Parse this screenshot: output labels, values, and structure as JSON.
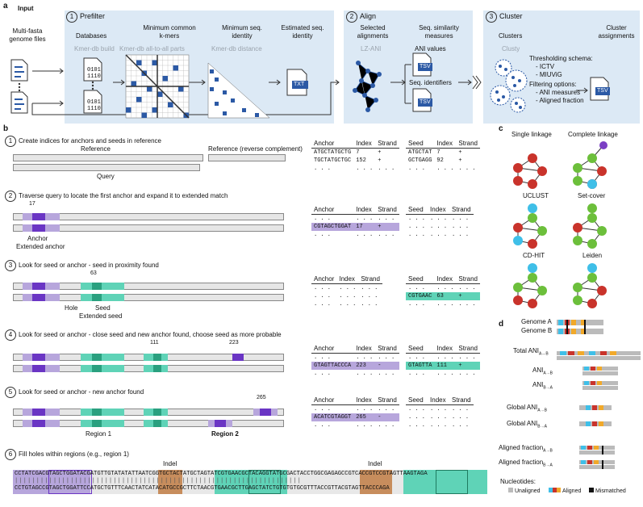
{
  "panels": {
    "a": "a",
    "b": "b",
    "c": "c",
    "d": "d"
  },
  "a": {
    "input": "Input",
    "input_desc": "Multi-fasta genome files",
    "prefilter": "Prefilter",
    "prefilter_num": "1",
    "databases": "Databases",
    "min_kmers": "Minimum common k-mers",
    "min_seq_id": "Minimum seq. identity",
    "est_seq_id": "Estimated seq. identity",
    "kmer_build": "Kmer-db build",
    "kmer_all": "Kmer-db all-to-all parts",
    "kmer_dist": "Kmer-db distance",
    "txt": "TXT",
    "bin_top": "0101",
    "bin_bot": "1110",
    "align": "Align",
    "align_num": "2",
    "sel_align": "Selected alignments",
    "seq_sim": "Seq. similarity measures",
    "lzani": "LZ-ANI",
    "ani_values": "ANI values",
    "seq_ident": "Seq. identifiers",
    "tsv": "TSV",
    "cluster": "Cluster",
    "cluster_num": "3",
    "clusters": "Clusters",
    "cluster_assign": "Cluster assignments",
    "clusty": "Clusty",
    "thresh": "Thresholding schema:",
    "ictv": "- ICTV",
    "miuvig": "- MIUViG",
    "filter": "Filtering options:",
    "ani_meas": "- ANI measures",
    "aligned_frac": "- Aligned fraction"
  },
  "b": {
    "step1": "Create indices for anchors and seeds in reference",
    "step2": "Traverse query to locate the first anchor and expand it to extended match",
    "step3": "Look for seed or anchor - seed in proximity found",
    "step4": "Look for seed or anchor - close seed and new anchor found, choose seed as more probable",
    "step5": "Look for seed or anchor - new anchor found",
    "step6": "Fill holes within regions (e.g., region 1)",
    "reference": "Reference",
    "reference_rc": "Reference (reverse complement)",
    "query": "Query",
    "anchor": "Anchor",
    "ext_anchor": "Extended anchor",
    "hole": "Hole",
    "seed": "Seed",
    "ext_seed": "Extended seed",
    "region1": "Region 1",
    "region2": "Region 2",
    "indel": "Indel",
    "pos17": "17",
    "pos63": "63",
    "pos111": "111",
    "pos223": "223",
    "pos265": "265",
    "hdr": {
      "anchor": "Anchor",
      "seed": "Seed",
      "index": "Index",
      "strand": "Strand"
    },
    "dots": ". . .",
    "t1a": [
      [
        "ATGCTATGCTG",
        "7",
        "+"
      ],
      [
        "TGCTATGCTGC",
        "152",
        "+"
      ]
    ],
    "t1s": [
      [
        "ATGCTAT",
        "7",
        "+"
      ],
      [
        "GCTGAGG",
        "92",
        "+"
      ]
    ],
    "t2a": [
      "CGTAGCTGGAT",
      "17",
      "+"
    ],
    "t3s": [
      "CGTGAAC",
      "63",
      "+"
    ],
    "t4a": [
      "GTAGTTACCCA",
      "223",
      "-"
    ],
    "t4s": [
      "GTAGTTA",
      "111",
      "+"
    ],
    "t5a": [
      "ACATCGTAGGT",
      "265",
      "-"
    ],
    "seq_top": "CCTATCGACGTAGCTGGATACGATGTTGTATATATTAATCGGTGCTACTATGCTAGTATCGTGAACGCTACAGGTATGCGACTACCTGGCGAGAGCCGTCACCGTCCGTAGTTAAGTAGA",
    "seq_bot": "CCTGTAGCCGTAGCTGGATTCCATGCTGTTTCAACTATCATACATGCCGCTTCTAACGTGAACGCTTGAGCTATCTGTGTGTGCGTTTACCGTTACGTAGTTACCCAGA"
  },
  "c": {
    "single": "Single linkage",
    "complete": "Complete linkage",
    "uclust": "UCLUST",
    "setcover": "Set-cover",
    "cdhit": "CD-HIT",
    "leiden": "Leiden"
  },
  "d": {
    "genome_a": "Genome A",
    "genome_b": "Genome B",
    "total_ani": "Total ANI",
    "ani": "ANI",
    "global_ani": "Global ANI",
    "aligned_fraction": "Aligned fraction",
    "sub_ab": "A↔B",
    "sub_a_b": "A→B",
    "sub_b_a": "B→A",
    "nucleotides": "Nucleotides:",
    "unaligned": "Unaligned",
    "aligned": "Aligned",
    "mismatched": "Mismatched"
  },
  "colors": {
    "purple": "#6a35c4",
    "lpurple": "#b7a6dc",
    "teal": "#2aa07f",
    "lteal": "#5fd3b7",
    "panel": "#dce9f5",
    "blue": "#2b59a5",
    "red": "#c9332b",
    "green": "#6cbf3b",
    "cyan": "#3fbfe8",
    "orange": "#f1a92a"
  }
}
